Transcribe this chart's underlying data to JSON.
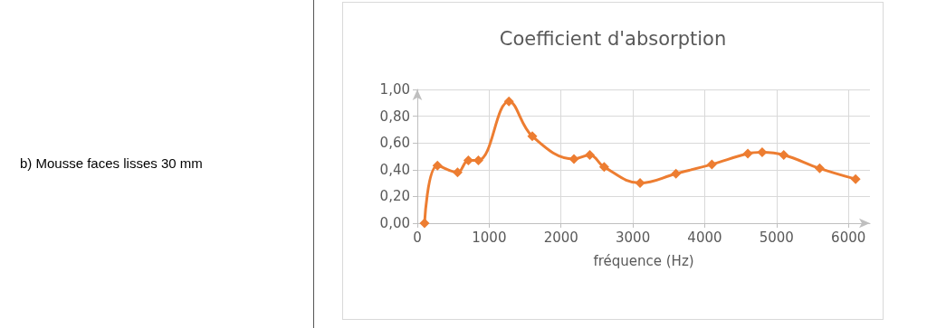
{
  "chart_data": {
    "type": "line",
    "title": "Coefficient d'absorption",
    "xlabel": "fréquence (Hz)",
    "annotations": [
      "b) Mousse faces lisses 30 mm"
    ],
    "x": [
      100,
      280,
      560,
      710,
      850,
      1275,
      1600,
      2180,
      2400,
      2600,
      3100,
      3600,
      4100,
      4600,
      4800,
      5100,
      5600,
      6100
    ],
    "series": [
      {
        "color": "#ed7d31",
        "values": [
          0,
          0.43,
          0.38,
          0.47,
          0.47,
          0.91,
          0.65,
          0.48,
          0.51,
          0.42,
          0.3,
          0.37,
          0.44,
          0.52,
          0.53,
          0.51,
          0.41,
          0.33
        ]
      }
    ],
    "xlim": [
      0,
      6300
    ],
    "xticks": [
      0,
      1000,
      2000,
      3000,
      4000,
      5000,
      6000
    ],
    "ylim": [
      0,
      1
    ],
    "yticks": [
      {
        "value": 0,
        "label": "0,00"
      },
      {
        "value": 0.2,
        "label": "0,20"
      },
      {
        "value": 0.4,
        "label": "0,40"
      },
      {
        "value": 0.6,
        "label": "0,60"
      },
      {
        "value": 0.8,
        "label": "0,80"
      },
      {
        "value": 1,
        "label": "1,00"
      }
    ],
    "grid": true,
    "marker": "diamond",
    "line_style": "solid"
  }
}
